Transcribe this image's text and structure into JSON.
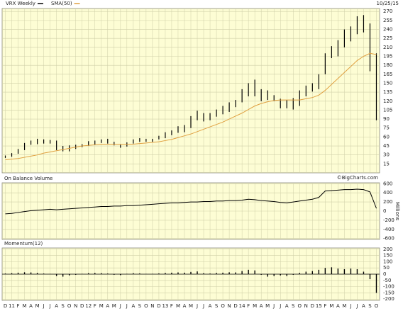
{
  "date": "10/25/15",
  "watermark": "©BigCharts.com",
  "chart_data": [
    {
      "type": "ohlc",
      "series": [
        {
          "name": "VRX Weekly",
          "color": "#000000",
          "high": [
            29,
            33,
            40,
            50,
            54,
            57,
            56,
            55,
            54,
            45,
            46,
            47,
            48,
            53,
            54,
            56,
            57,
            52,
            47,
            51,
            56,
            58,
            57,
            57,
            62,
            68,
            71,
            78,
            80,
            95,
            104,
            100,
            100,
            106,
            112,
            118,
            122,
            140,
            150,
            156,
            140,
            138,
            130,
            124,
            122,
            125,
            138,
            146,
            150,
            165,
            200,
            212,
            222,
            240,
            245,
            262,
            264,
            250,
            200
          ],
          "low": [
            25,
            27,
            32,
            38,
            47,
            48,
            49,
            49,
            38,
            36,
            36,
            40,
            43,
            45,
            47,
            50,
            49,
            46,
            42,
            44,
            49,
            52,
            52,
            52,
            56,
            58,
            63,
            67,
            68,
            75,
            88,
            86,
            88,
            94,
            98,
            102,
            110,
            118,
            128,
            128,
            120,
            122,
            120,
            108,
            108,
            106,
            112,
            128,
            136,
            140,
            165,
            192,
            195,
            210,
            220,
            232,
            235,
            170,
            88
          ]
        },
        {
          "name": "SMA(50)",
          "color": "#e0a040",
          "values": [
            22,
            23,
            24,
            26,
            28,
            30,
            33,
            35,
            37,
            39,
            41,
            43,
            45,
            46,
            47,
            48,
            48,
            48,
            48,
            48,
            48,
            49,
            50,
            51,
            52,
            54,
            56,
            59,
            62,
            65,
            69,
            73,
            77,
            81,
            85,
            90,
            95,
            100,
            106,
            112,
            116,
            119,
            121,
            122,
            122,
            122,
            122,
            124,
            126,
            130,
            138,
            148,
            158,
            168,
            178,
            188,
            195,
            200,
            198
          ]
        }
      ],
      "ylim": [
        0,
        275
      ],
      "yticks": [
        15,
        30,
        45,
        60,
        75,
        90,
        105,
        120,
        135,
        150,
        165,
        180,
        195,
        210,
        225,
        240,
        255,
        270
      ],
      "grid": true
    },
    {
      "type": "line",
      "title": "On Balance Volume",
      "y_label": "Millions",
      "series": [
        {
          "color": "#000000",
          "values": [
            -60,
            -50,
            -30,
            -10,
            10,
            20,
            30,
            40,
            30,
            40,
            50,
            60,
            70,
            80,
            90,
            100,
            100,
            110,
            110,
            120,
            120,
            130,
            140,
            150,
            160,
            170,
            180,
            180,
            190,
            200,
            200,
            210,
            210,
            220,
            220,
            230,
            230,
            240,
            260,
            250,
            230,
            220,
            210,
            190,
            180,
            200,
            220,
            240,
            260,
            300,
            440,
            450,
            460,
            470,
            470,
            480,
            470,
            420,
            60
          ]
        }
      ],
      "ylim": [
        -620,
        620
      ],
      "yticks": [
        -600,
        -400,
        -200,
        0,
        200,
        400,
        600
      ],
      "grid": true
    },
    {
      "type": "bar",
      "title": "Momentum(12)",
      "color": "#000000",
      "categories": [
        "D",
        "11",
        "F",
        "M",
        "A",
        "M",
        "J",
        "J",
        "A",
        "S",
        "O",
        "N",
        "D",
        "12",
        "F",
        "M",
        "A",
        "M",
        "J",
        "J",
        "A",
        "S",
        "O",
        "N",
        "D",
        "13",
        "F",
        "M",
        "A",
        "M",
        "J",
        "J",
        "A",
        "S",
        "O",
        "N",
        "D",
        "14",
        "F",
        "M",
        "A",
        "M",
        "J",
        "J",
        "A",
        "S",
        "O",
        "N",
        "D",
        "15",
        "F",
        "M",
        "A",
        "M",
        "J",
        "J",
        "A",
        "S",
        "O"
      ],
      "values": [
        5,
        8,
        12,
        15,
        14,
        10,
        5,
        2,
        -15,
        -20,
        -10,
        -5,
        3,
        8,
        10,
        8,
        5,
        -5,
        -8,
        3,
        8,
        6,
        2,
        3,
        6,
        10,
        12,
        14,
        12,
        18,
        22,
        8,
        5,
        10,
        12,
        15,
        14,
        25,
        35,
        30,
        -5,
        -20,
        -15,
        -10,
        -15,
        -5,
        10,
        20,
        25,
        35,
        50,
        55,
        45,
        40,
        45,
        40,
        20,
        -40,
        -150
      ],
      "ylim": [
        -210,
        210
      ],
      "yticks": [
        -200,
        -150,
        -100,
        -50,
        0,
        50,
        100,
        150,
        200
      ],
      "grid": true
    }
  ]
}
